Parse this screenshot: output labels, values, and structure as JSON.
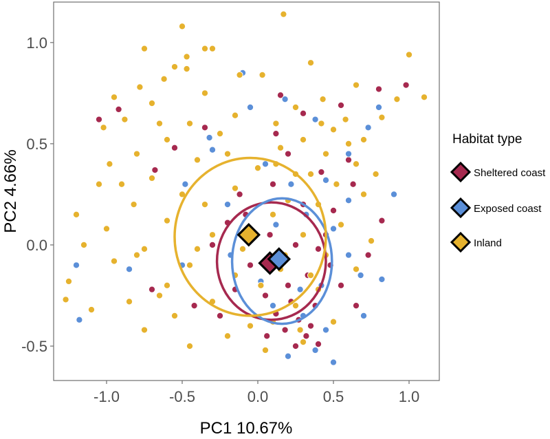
{
  "chart_data": {
    "type": "scatter",
    "title": "",
    "xlabel": "PC1 10.67%",
    "ylabel": "PC2 4.66%",
    "xlim": [
      -1.35,
      1.2
    ],
    "ylim": [
      -0.67,
      1.2
    ],
    "x_ticks": [
      -1.0,
      -0.5,
      0.0,
      0.5,
      1.0
    ],
    "x_tick_labels": [
      "-1.0",
      "-0.5",
      "0.0",
      "0.5",
      "1.0"
    ],
    "y_ticks": [
      -0.5,
      0.0,
      0.5,
      1.0
    ],
    "y_tick_labels": [
      "-0.5",
      "0.0",
      "0.5",
      "1.0"
    ],
    "grid": false,
    "legend": {
      "title": "Habitat type",
      "position": "right"
    },
    "series": [
      {
        "name": "Sheltered coast",
        "color": "#A6294F",
        "centroid": [
          0.08,
          -0.09
        ],
        "ellipse": {
          "cx": 0.09,
          "cy": -0.08,
          "rx": 0.36,
          "ry": 0.29
        },
        "points": [
          [
            -0.92,
            0.67
          ],
          [
            -1.05,
            0.62
          ],
          [
            0.15,
            0.74
          ],
          [
            0.3,
            0.65
          ],
          [
            0.55,
            0.69
          ],
          [
            0.8,
            0.77
          ],
          [
            0.98,
            0.79
          ],
          [
            -0.35,
            0.58
          ],
          [
            0.12,
            0.55
          ],
          [
            0.6,
            0.42
          ],
          [
            -0.55,
            0.48
          ],
          [
            0.2,
            0.45
          ],
          [
            0.42,
            0.36
          ],
          [
            -0.68,
            0.37
          ],
          [
            0.63,
            0.3
          ],
          [
            -0.12,
            0.25
          ],
          [
            0.3,
            0.2
          ],
          [
            0.5,
            0.17
          ],
          [
            -0.2,
            0.11
          ],
          [
            0.08,
            0.05
          ],
          [
            0.25,
            0.0
          ],
          [
            0.4,
            -0.02
          ],
          [
            -0.05,
            -0.1
          ],
          [
            0.15,
            -0.12
          ],
          [
            0.33,
            -0.15
          ],
          [
            0.48,
            -0.1
          ],
          [
            -0.15,
            -0.22
          ],
          [
            0.05,
            -0.25
          ],
          [
            0.22,
            -0.28
          ],
          [
            0.38,
            -0.3
          ],
          [
            0.12,
            -0.34
          ],
          [
            0.27,
            -0.37
          ],
          [
            0.18,
            -0.42
          ],
          [
            0.32,
            -0.45
          ],
          [
            0.25,
            -0.5
          ],
          [
            0.4,
            -0.49
          ],
          [
            -0.25,
            -0.35
          ],
          [
            0.55,
            -0.2
          ],
          [
            0.73,
            -0.05
          ],
          [
            -0.42,
            -0.3
          ],
          [
            -0.7,
            -0.22
          ],
          [
            0.82,
            0.12
          ],
          [
            0.65,
            -0.3
          ],
          [
            0.1,
            0.3
          ],
          [
            -0.3,
            0.0
          ],
          [
            0.45,
            0.05
          ],
          [
            0.06,
            -0.45
          ],
          [
            0.35,
            -0.4
          ],
          [
            0.2,
            -0.2
          ],
          [
            -0.08,
            0.15
          ]
        ]
      },
      {
        "name": "Exposed coast",
        "color": "#5B8FD8",
        "centroid": [
          0.14,
          -0.07
        ],
        "ellipse": {
          "cx": 0.16,
          "cy": -0.08,
          "rx": 0.33,
          "ry": 0.31
        },
        "points": [
          [
            -0.1,
            0.85
          ],
          [
            -0.05,
            0.68
          ],
          [
            0.8,
            0.68
          ],
          [
            0.18,
            0.72
          ],
          [
            0.38,
            0.62
          ],
          [
            -0.32,
            0.53
          ],
          [
            0.73,
            0.58
          ],
          [
            -0.3,
            0.47
          ],
          [
            0.05,
            0.4
          ],
          [
            0.45,
            0.32
          ],
          [
            0.6,
            0.22
          ],
          [
            -0.48,
            0.3
          ],
          [
            0.32,
            0.15
          ],
          [
            0.5,
            0.08
          ],
          [
            0.12,
            0.1
          ],
          [
            0.6,
            -0.05
          ],
          [
            0.68,
            -0.15
          ],
          [
            -0.18,
            -0.05
          ],
          [
            0.02,
            -0.18
          ],
          [
            0.28,
            -0.22
          ],
          [
            0.42,
            -0.2
          ],
          [
            0.1,
            -0.3
          ],
          [
            0.3,
            -0.35
          ],
          [
            0.45,
            -0.42
          ],
          [
            0.38,
            -0.52
          ],
          [
            0.5,
            -0.58
          ],
          [
            -1.18,
            -0.37
          ],
          [
            -1.2,
            -0.1
          ],
          [
            0.82,
            -0.17
          ],
          [
            0.9,
            0.25
          ],
          [
            -0.85,
            -0.12
          ],
          [
            0.7,
            -0.35
          ],
          [
            -0.5,
            -0.1
          ],
          [
            0.2,
            -0.55
          ],
          [
            0.6,
            0.45
          ],
          [
            -0.2,
            0.2
          ],
          [
            0.22,
            0.3
          ]
        ]
      },
      {
        "name": "Inland",
        "color": "#E6B22E",
        "centroid": [
          -0.06,
          0.05
        ],
        "ellipse": {
          "cx": -0.05,
          "cy": 0.04,
          "rx": 0.5,
          "ry": 0.39
        },
        "points": [
          [
            -0.5,
            1.08
          ],
          [
            0.17,
            1.14
          ],
          [
            -0.75,
            0.97
          ],
          [
            -0.47,
            0.93
          ],
          [
            -0.35,
            0.97
          ],
          [
            -0.47,
            0.87
          ],
          [
            -0.3,
            0.97
          ],
          [
            1.0,
            0.94
          ],
          [
            -0.55,
            0.88
          ],
          [
            -0.62,
            0.82
          ],
          [
            0.35,
            0.9
          ],
          [
            -0.78,
            0.78
          ],
          [
            -0.12,
            0.84
          ],
          [
            0.03,
            0.84
          ],
          [
            0.43,
            0.72
          ],
          [
            0.65,
            0.79
          ],
          [
            -0.95,
            0.73
          ],
          [
            1.1,
            0.73
          ],
          [
            -0.7,
            0.7
          ],
          [
            0.92,
            0.72
          ],
          [
            -0.35,
            0.75
          ],
          [
            0.25,
            0.68
          ],
          [
            -0.15,
            0.64
          ],
          [
            0.58,
            0.62
          ],
          [
            -0.88,
            0.62
          ],
          [
            0.82,
            0.63
          ],
          [
            -0.45,
            0.6
          ],
          [
            0.12,
            0.6
          ],
          [
            0.5,
            0.57
          ],
          [
            -1.02,
            0.58
          ],
          [
            0.7,
            0.52
          ],
          [
            -0.25,
            0.55
          ],
          [
            0.3,
            0.52
          ],
          [
            -0.6,
            0.52
          ],
          [
            -0.8,
            0.45
          ],
          [
            0.15,
            0.48
          ],
          [
            0.45,
            0.45
          ],
          [
            -0.4,
            0.42
          ],
          [
            0.65,
            0.4
          ],
          [
            -0.98,
            0.4
          ],
          [
            0.0,
            0.38
          ],
          [
            -0.7,
            0.33
          ],
          [
            0.25,
            0.35
          ],
          [
            0.52,
            0.3
          ],
          [
            -1.05,
            0.3
          ],
          [
            -0.5,
            0.25
          ],
          [
            -0.15,
            0.28
          ],
          [
            0.7,
            0.25
          ],
          [
            -0.82,
            0.2
          ],
          [
            0.4,
            0.2
          ],
          [
            -1.2,
            0.15
          ],
          [
            -0.6,
            0.12
          ],
          [
            0.1,
            0.15
          ],
          [
            0.55,
            0.1
          ],
          [
            -1.0,
            0.08
          ],
          [
            -0.3,
            0.05
          ],
          [
            0.3,
            0.05
          ],
          [
            0.75,
            0.02
          ],
          [
            -1.15,
            0.0
          ],
          [
            -0.75,
            -0.02
          ],
          [
            -0.1,
            -0.02
          ],
          [
            0.45,
            -0.05
          ],
          [
            -0.95,
            -0.08
          ],
          [
            -0.45,
            -0.1
          ],
          [
            0.15,
            -0.12
          ],
          [
            0.65,
            -0.12
          ],
          [
            -1.25,
            -0.18
          ],
          [
            -0.6,
            -0.2
          ],
          [
            0.02,
            -0.2
          ],
          [
            0.4,
            -0.22
          ],
          [
            -0.85,
            -0.28
          ],
          [
            -0.3,
            -0.28
          ],
          [
            0.25,
            -0.3
          ],
          [
            -1.1,
            -0.32
          ],
          [
            -0.55,
            -0.35
          ],
          [
            0.1,
            -0.38
          ],
          [
            0.5,
            -0.38
          ],
          [
            -0.75,
            -0.42
          ],
          [
            -0.2,
            -0.45
          ],
          [
            0.3,
            -0.48
          ],
          [
            -0.45,
            -0.5
          ],
          [
            0.05,
            -0.52
          ],
          [
            -0.65,
            -0.25
          ],
          [
            0.2,
            0.22
          ],
          [
            -0.2,
            0.45
          ],
          [
            0.35,
            -0.15
          ],
          [
            -0.4,
            -0.02
          ],
          [
            0.6,
            0.5
          ],
          [
            -1.27,
            -0.27
          ],
          [
            -0.05,
            -0.4
          ],
          [
            0.12,
            0.4
          ],
          [
            -0.9,
            0.3
          ],
          [
            0.28,
            -0.42
          ],
          [
            0.42,
            0.6
          ],
          [
            -0.35,
            0.2
          ],
          [
            0.18,
            -0.05
          ],
          [
            -0.65,
            0.6
          ],
          [
            0.78,
            0.35
          ],
          [
            -0.15,
            -0.15
          ],
          [
            0.35,
            0.35
          ],
          [
            -0.8,
            -0.05
          ]
        ]
      }
    ]
  }
}
